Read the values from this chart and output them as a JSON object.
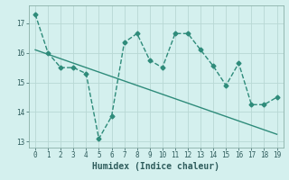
{
  "xlabel": "Humidex (Indice chaleur)",
  "x": [
    0,
    1,
    2,
    3,
    4,
    5,
    6,
    7,
    8,
    9,
    10,
    11,
    12,
    13,
    14,
    15,
    16,
    17,
    18,
    19
  ],
  "y_line": [
    17.3,
    16.0,
    15.5,
    15.5,
    15.3,
    13.1,
    13.85,
    16.35,
    16.65,
    15.75,
    15.5,
    16.65,
    16.65,
    16.1,
    15.55,
    14.9,
    15.65,
    14.25,
    14.25,
    14.5
  ],
  "y_trend": [
    16.1,
    15.95,
    15.8,
    15.65,
    15.5,
    15.35,
    15.2,
    15.05,
    14.9,
    14.75,
    14.6,
    14.45,
    14.3,
    14.15,
    14.0,
    13.85,
    13.7,
    13.55,
    13.4,
    13.25
  ],
  "ylim": [
    12.8,
    17.6
  ],
  "xlim": [
    -0.5,
    19.5
  ],
  "yticks": [
    13,
    14,
    15,
    16,
    17
  ],
  "xticks": [
    0,
    1,
    2,
    3,
    4,
    5,
    6,
    7,
    8,
    9,
    10,
    11,
    12,
    13,
    14,
    15,
    16,
    17,
    18,
    19
  ],
  "line_color": "#2e8b7a",
  "trend_color": "#2e8b7a",
  "bg_color": "#d4f0ee",
  "grid_color": "#b8d8d4",
  "marker": "D",
  "marker_size": 2.5,
  "line_width": 1.0,
  "font_color": "#2e5c5c",
  "xlabel_fontsize": 7,
  "tick_fontsize": 5.5
}
